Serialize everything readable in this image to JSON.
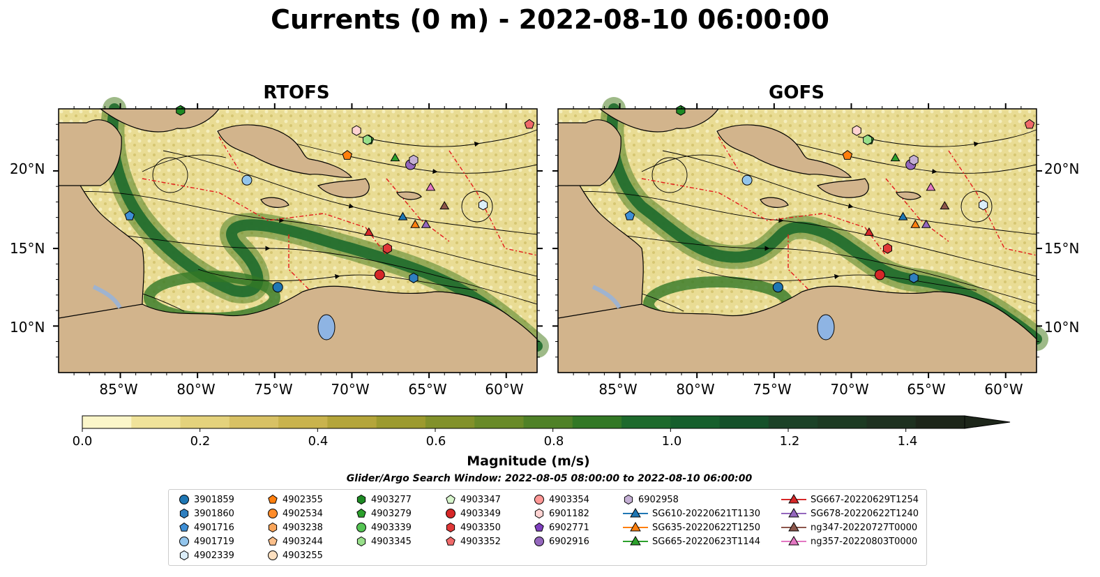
{
  "title": "Currents (0 m) - 2022-08-10 06:00:00",
  "panels": [
    {
      "title": "RTOFS"
    },
    {
      "title": "GOFS"
    }
  ],
  "axes": {
    "lat_labels": [
      "20°N",
      "15°N",
      "10°N"
    ],
    "lon_labels": [
      "85°W",
      "80°W",
      "75°W",
      "70°W",
      "65°W",
      "60°W"
    ],
    "lat_range": [
      7,
      24
    ],
    "lon_range": [
      -89,
      -58
    ]
  },
  "colorbar": {
    "label": "Magnitude (m/s)",
    "ticks": [
      "0.0",
      "0.2",
      "0.4",
      "0.6",
      "0.8",
      "1.0",
      "1.2",
      "1.4"
    ],
    "range": [
      0,
      1.5
    ],
    "extend": "max",
    "colors": [
      "#fbf6c9",
      "#f0e39a",
      "#e4d27c",
      "#d8c164",
      "#c9b34d",
      "#b4a53a",
      "#9c9a2e",
      "#82912a",
      "#698a28",
      "#4f8127",
      "#327825",
      "#1d6a2c",
      "#165f2c",
      "#15512a",
      "#1b4227",
      "#1c3a22",
      "#1e3120",
      "#1d261a"
    ]
  },
  "search_window": "Glider/Argo Search Window: 2022-08-05 08:00:00 to 2022-08-10 06:00:00",
  "legend": [
    {
      "label": "3901859",
      "marker": "circle",
      "color": "#1f77b4"
    },
    {
      "label": "3901860",
      "marker": "hexagon",
      "color": "#2f7fbf"
    },
    {
      "label": "4901716",
      "marker": "pentagon",
      "color": "#3e8fd6"
    },
    {
      "label": "4901719",
      "marker": "circle",
      "color": "#93c5ec"
    },
    {
      "label": "4902339",
      "marker": "hexagon",
      "color": "#dceefa"
    },
    {
      "label": "4902355",
      "marker": "pentagon",
      "color": "#ff7f0e"
    },
    {
      "label": "4902534",
      "marker": "circle",
      "color": "#ff8c2a"
    },
    {
      "label": "4903238",
      "marker": "hexagon",
      "color": "#f9a55a"
    },
    {
      "label": "4903244",
      "marker": "pentagon",
      "color": "#fbbf8a"
    },
    {
      "label": "4903255",
      "marker": "circle",
      "color": "#fde0c0"
    },
    {
      "label": "4903277",
      "marker": "hexagon",
      "color": "#1e8a24"
    },
    {
      "label": "4903279",
      "marker": "pentagon",
      "color": "#2ca02c"
    },
    {
      "label": "4903339",
      "marker": "circle",
      "color": "#55c454"
    },
    {
      "label": "4903345",
      "marker": "hexagon",
      "color": "#98df8a"
    },
    {
      "label": "4903347",
      "marker": "pentagon",
      "color": "#d7f5cc"
    },
    {
      "label": "4903349",
      "marker": "circle",
      "color": "#d62728"
    },
    {
      "label": "4903350",
      "marker": "hexagon",
      "color": "#e03838"
    },
    {
      "label": "4903352",
      "marker": "pentagon",
      "color": "#f06a6a"
    },
    {
      "label": "4903354",
      "marker": "circle",
      "color": "#ff9896"
    },
    {
      "label": "6901182",
      "marker": "hexagon",
      "color": "#ffd3d2"
    },
    {
      "label": "6902771",
      "marker": "pentagon",
      "color": "#7f3fbf"
    },
    {
      "label": "6902916",
      "marker": "circle",
      "color": "#9467bd"
    },
    {
      "label": "6902958",
      "marker": "hexagon",
      "color": "#c5b0d5"
    },
    {
      "label": "SG610-20220621T1130",
      "marker": "triangle",
      "color": "#1f77b4"
    },
    {
      "label": "SG635-20220622T1250",
      "marker": "triangle",
      "color": "#ff7f0e"
    },
    {
      "label": "SG665-20220623T1144",
      "marker": "triangle",
      "color": "#2ca02c"
    },
    {
      "label": "SG667-20220629T1254",
      "marker": "triangle",
      "color": "#d62728"
    },
    {
      "label": "SG678-20220622T1240",
      "marker": "triangle",
      "color": "#9467bd"
    },
    {
      "label": "ng347-20220727T0000",
      "marker": "triangle",
      "color": "#8c564b"
    },
    {
      "label": "ng357-20220803T0000",
      "marker": "triangle",
      "color": "#e377c2"
    }
  ],
  "platforms": [
    {
      "id": "3901859",
      "lon": -74.8,
      "lat": 12.5
    },
    {
      "id": "3901860",
      "lon": -66.0,
      "lat": 13.1
    },
    {
      "id": "4901716",
      "lon": -84.4,
      "lat": 17.1
    },
    {
      "id": "4901719",
      "lon": -76.8,
      "lat": 19.4
    },
    {
      "id": "4902339",
      "lon": -61.5,
      "lat": 17.8
    },
    {
      "id": "4902355",
      "lon": -70.3,
      "lat": 21.0
    },
    {
      "id": "4903277",
      "lon": -81.1,
      "lat": 23.9
    },
    {
      "id": "4903279",
      "lon": -68.9,
      "lat": 22.0
    },
    {
      "id": "4903345",
      "lon": -69.0,
      "lat": 22.0
    },
    {
      "id": "4903349",
      "lon": -68.2,
      "lat": 13.3
    },
    {
      "id": "4903350",
      "lon": -67.7,
      "lat": 15.0
    },
    {
      "id": "4903352",
      "lon": -58.5,
      "lat": 23.0
    },
    {
      "id": "6901182",
      "lon": -69.7,
      "lat": 22.6
    },
    {
      "id": "6902916",
      "lon": -66.2,
      "lat": 20.4
    },
    {
      "id": "6902958",
      "lon": -66.0,
      "lat": 20.7
    },
    {
      "id": "SG610-20220621T1130",
      "lon": -66.7,
      "lat": 17.0
    },
    {
      "id": "SG635-20220622T1250",
      "lon": -65.9,
      "lat": 16.5
    },
    {
      "id": "SG665-20220623T1144",
      "lon": -67.2,
      "lat": 20.8
    },
    {
      "id": "SG667-20220629T1254",
      "lon": -68.9,
      "lat": 16.0
    },
    {
      "id": "SG678-20220622T1240",
      "lon": -65.2,
      "lat": 16.5
    },
    {
      "id": "ng347-20220727T0000",
      "lon": -64.0,
      "lat": 17.7
    },
    {
      "id": "ng357-20220803T0000",
      "lon": -64.9,
      "lat": 18.9
    }
  ]
}
